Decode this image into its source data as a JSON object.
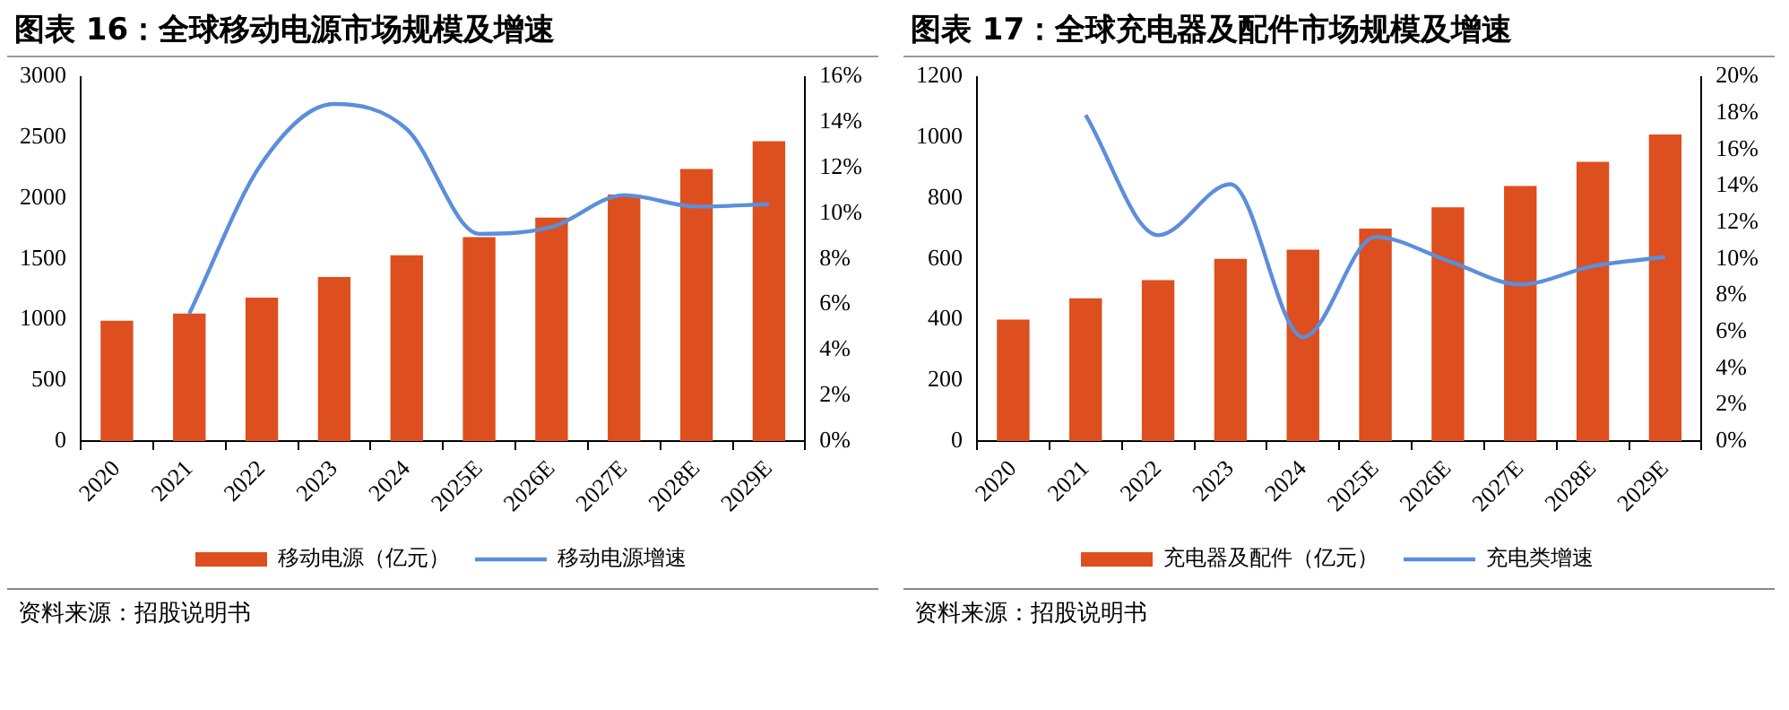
{
  "chart_data": [
    {
      "type": "bar",
      "title": "图表 16：全球移动电源市场规模及增速",
      "categories": [
        "2020",
        "2021",
        "2022",
        "2023",
        "2024",
        "2025E",
        "2026E",
        "2027E",
        "2028E",
        "2029E"
      ],
      "series": [
        {
          "name": "移动电源（亿元）",
          "color": "#dd4f1f",
          "values": [
            990,
            1050,
            1180,
            1350,
            1530,
            1680,
            1840,
            2030,
            2240,
            2470
          ]
        },
        {
          "name": "移动电源增速",
          "type": "line",
          "axis": "y2",
          "color": "#5b8fdc",
          "values": [
            null,
            5.6,
            12.2,
            14.8,
            13.7,
            9.1,
            9.4,
            10.8,
            10.3,
            10.4
          ]
        }
      ],
      "ylim": [
        0,
        3000
      ],
      "yticks": [
        0,
        500,
        1000,
        1500,
        2000,
        2500,
        3000
      ],
      "y2lim": [
        0,
        16
      ],
      "y2ticks": [
        {
          "value": 0,
          "label": "0%"
        },
        {
          "value": 2,
          "label": "2%"
        },
        {
          "value": 4,
          "label": "4%"
        },
        {
          "value": 6,
          "label": "6%"
        },
        {
          "value": 8,
          "label": "8%"
        },
        {
          "value": 10,
          "label": "10%"
        },
        {
          "value": 12,
          "label": "12%"
        },
        {
          "value": 14,
          "label": "14%"
        },
        {
          "value": 16,
          "label": "16%"
        }
      ],
      "grid": false,
      "legend": "bottom",
      "annotations": [
        "资料来源：招股说明书"
      ]
    },
    {
      "type": "bar",
      "title": "图表 17：全球充电器及配件市场规模及增速",
      "categories": [
        "2020",
        "2021",
        "2022",
        "2023",
        "2024",
        "2025E",
        "2026E",
        "2027E",
        "2028E",
        "2029E"
      ],
      "series": [
        {
          "name": "充电器及配件（亿元）",
          "color": "#dd4f1f",
          "values": [
            400,
            470,
            530,
            600,
            630,
            700,
            770,
            840,
            920,
            1010
          ]
        },
        {
          "name": "充电类增速",
          "type": "line",
          "axis": "y2",
          "color": "#5b8fdc",
          "values": [
            null,
            17.9,
            11.3,
            14.1,
            5.7,
            11.2,
            9.9,
            8.6,
            9.6,
            10.1
          ]
        }
      ],
      "ylim": [
        0,
        1200
      ],
      "yticks": [
        0,
        200,
        400,
        600,
        800,
        1000,
        1200
      ],
      "y2lim": [
        0,
        20
      ],
      "y2ticks": [
        {
          "value": 0,
          "label": "0%"
        },
        {
          "value": 2,
          "label": "2%"
        },
        {
          "value": 4,
          "label": "4%"
        },
        {
          "value": 6,
          "label": "6%"
        },
        {
          "value": 8,
          "label": "8%"
        },
        {
          "value": 10,
          "label": "10%"
        },
        {
          "value": 12,
          "label": "12%"
        },
        {
          "value": 14,
          "label": "14%"
        },
        {
          "value": 16,
          "label": "16%"
        },
        {
          "value": 18,
          "label": "18%"
        },
        {
          "value": 20,
          "label": "20%"
        }
      ],
      "grid": false,
      "legend": "bottom",
      "annotations": [
        "资料来源：招股说明书"
      ]
    }
  ]
}
